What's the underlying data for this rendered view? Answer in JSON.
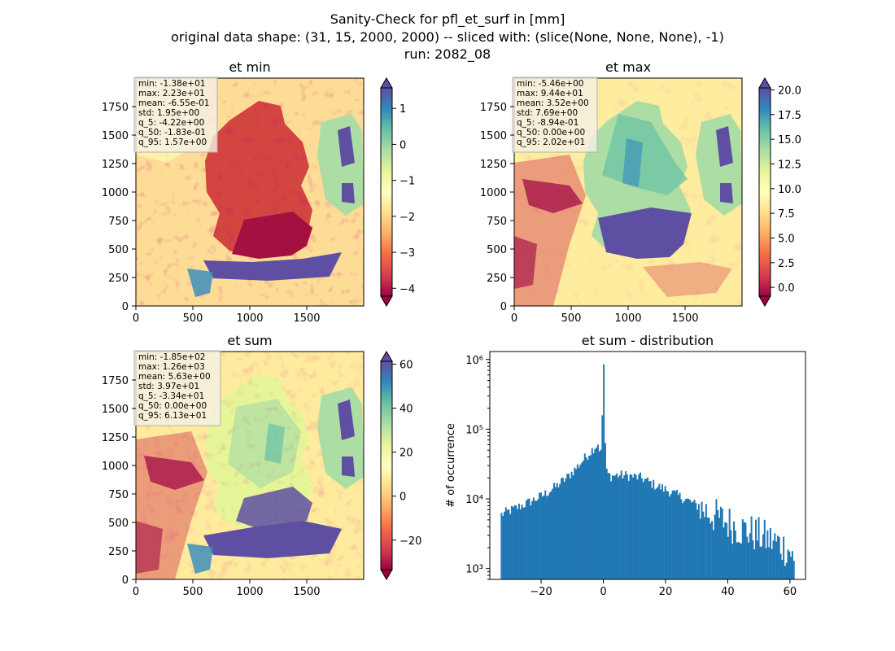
{
  "suptitle": {
    "line1": "Sanity-Check for pfl_et_surf in [mm]",
    "line2": "original data shape: (31, 15, 2000, 2000) -- sliced with: (slice(None, None, None), -1)",
    "line3": "run: 2082_08"
  },
  "colors": {
    "hist_bar": "#1f77b4",
    "spectral": [
      "#9e0142",
      "#d53e4f",
      "#f46d43",
      "#fdae61",
      "#fee08b",
      "#ffffbf",
      "#e6f598",
      "#abdda4",
      "#66c2a5",
      "#3288bd",
      "#5e4fa2"
    ]
  },
  "chart_data": [
    {
      "type": "heatmap",
      "title": "et min",
      "xticks": [
        "0",
        "500",
        "1000",
        "1500"
      ],
      "yticks": [
        "0",
        "250",
        "500",
        "750",
        "1000",
        "1250",
        "1500",
        "1750"
      ],
      "xlim": [
        0,
        2000
      ],
      "ylim": [
        0,
        2000
      ],
      "colormap": "Spectral",
      "colorbar": {
        "ticks": [
          "1",
          "0",
          "−1",
          "−2",
          "−3",
          "−4"
        ],
        "tick_values": [
          1,
          0,
          -1,
          -2,
          -3,
          -4
        ],
        "vmin": -4.22,
        "vmax": 1.57,
        "extend": "both"
      },
      "stats": [
        "min: -1.38e+01",
        "max: 2.23e+01",
        "mean: -6.55e-01",
        "std: 1.95e+00",
        "q_5: -4.22e+00",
        "q_50: -1.83e-01",
        "q_95: 1.57e+00"
      ]
    },
    {
      "type": "heatmap",
      "title": "et max",
      "xticks": [
        "0",
        "500",
        "1000",
        "1500"
      ],
      "yticks": [
        "0",
        "250",
        "500",
        "750",
        "1000",
        "1250",
        "1500",
        "1750"
      ],
      "xlim": [
        0,
        2000
      ],
      "ylim": [
        0,
        2000
      ],
      "colormap": "Spectral",
      "colorbar": {
        "ticks": [
          "20.0",
          "17.5",
          "15.0",
          "12.5",
          "10.0",
          "7.5",
          "5.0",
          "2.5",
          "0.0"
        ],
        "tick_values": [
          20,
          17.5,
          15,
          12.5,
          10,
          7.5,
          5,
          2.5,
          0
        ],
        "vmin": -0.894,
        "vmax": 20.2,
        "extend": "both"
      },
      "stats": [
        "min: -5.46e+00",
        "max: 9.44e+01",
        "mean: 3.52e+00",
        "std: 7.69e+00",
        "q_5: -8.94e-01",
        "q_50: 0.00e+00",
        "q_95: 2.02e+01"
      ]
    },
    {
      "type": "heatmap",
      "title": "et sum",
      "xticks": [
        "0",
        "500",
        "1000",
        "1500"
      ],
      "yticks": [
        "0",
        "250",
        "500",
        "750",
        "1000",
        "1250",
        "1500",
        "1750"
      ],
      "xlim": [
        0,
        2000
      ],
      "ylim": [
        0,
        2000
      ],
      "colormap": "Spectral",
      "colorbar": {
        "ticks": [
          "60",
          "40",
          "20",
          "0",
          "−20"
        ],
        "tick_values": [
          60,
          40,
          20,
          0,
          -20
        ],
        "vmin": -33.4,
        "vmax": 61.3,
        "extend": "both"
      },
      "stats": [
        "min: -1.85e+02",
        "max: 1.26e+03",
        "mean: 5.63e+00",
        "std: 3.97e+01",
        "q_5: -3.34e+01",
        "q_50: 0.00e+00",
        "q_95: 6.13e+01"
      ]
    },
    {
      "type": "bar",
      "title": "et sum - distribution",
      "ylabel": "# of occurrence",
      "yscale": "log",
      "xlim": [
        -36.5,
        65
      ],
      "ylim": [
        700,
        1300000
      ],
      "xticks": [
        "−20",
        "0",
        "20",
        "40",
        "60"
      ],
      "xtick_values": [
        -20,
        0,
        20,
        40,
        60
      ],
      "yticks": [
        "10³",
        "10⁴",
        "10⁵",
        "10⁶"
      ],
      "ytick_values": [
        1000,
        10000,
        100000,
        1000000
      ],
      "x": [
        -33,
        -28,
        -24,
        -20,
        -16,
        -12,
        -8,
        -4,
        -2,
        -1,
        0,
        0.5,
        2,
        4,
        8,
        12,
        16,
        20,
        24,
        28,
        32,
        36,
        40,
        44,
        48,
        52,
        56,
        58,
        60,
        61
      ],
      "values": [
        6000,
        7500,
        9000,
        11000,
        14500,
        20000,
        31000,
        50000,
        62000,
        45000,
        850000,
        25000,
        21000,
        22000,
        21500,
        20000,
        16000,
        13500,
        11000,
        9000,
        7000,
        5500,
        4500,
        3700,
        3200,
        2700,
        2300,
        2000,
        1800,
        1100
      ]
    }
  ]
}
